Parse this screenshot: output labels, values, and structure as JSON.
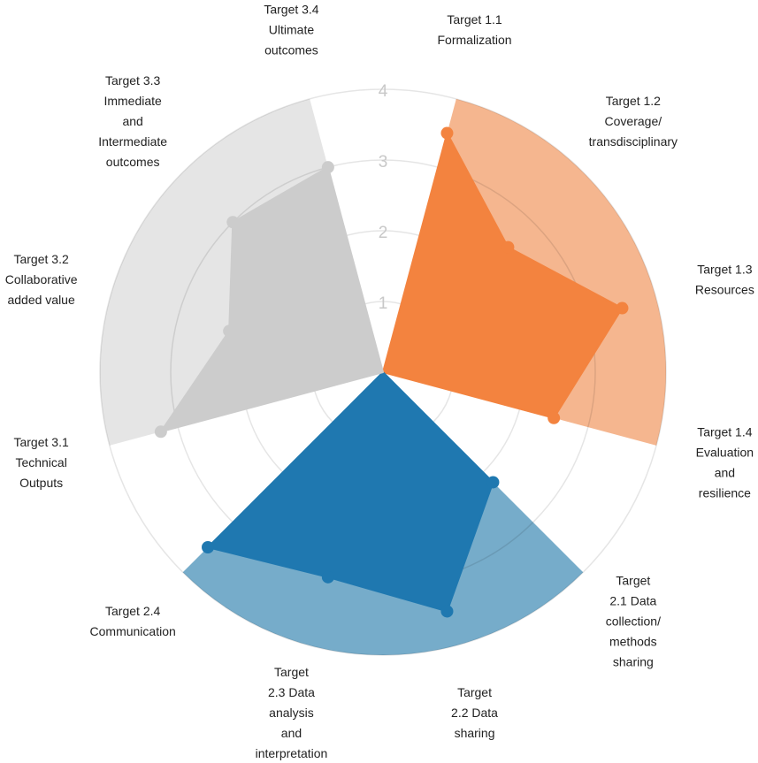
{
  "chart_data": {
    "type": "radar",
    "categories": [
      [
        "Target 1.1",
        "Formalization"
      ],
      [
        "Target 1.2",
        "Coverage/",
        "transdisciplinary"
      ],
      [
        "Target 1.3",
        "Resources"
      ],
      [
        "Target 1.4",
        "Evaluation",
        "and",
        "resilience"
      ],
      [
        "Target",
        "2.1 Data",
        "collection/",
        "methods",
        "sharing"
      ],
      [
        "Target",
        "2.2 Data",
        "sharing"
      ],
      [
        "Target",
        "2.3 Data",
        "analysis",
        "and",
        "interpretation"
      ],
      [
        "Target 2.4",
        "Communication"
      ],
      [
        "Target 3.1",
        "Technical",
        "Outputs"
      ],
      [
        "Target 3.2",
        "Collaborative",
        "added value"
      ],
      [
        "Target 3.3",
        "Immediate",
        "and",
        "Intermediate",
        "outcomes"
      ],
      [
        "Target 3.4",
        "Ultimate",
        "outcomes"
      ]
    ],
    "series": [
      {
        "color": "#f3833f",
        "band_color": "#f5b68f",
        "values": [
          3.5,
          2.5,
          3.5,
          2.5,
          null,
          null,
          null,
          null,
          null,
          null,
          null,
          null
        ]
      },
      {
        "color": "#1f78b0",
        "band_color": "#76acca",
        "values": [
          null,
          null,
          null,
          null,
          2.2,
          3.5,
          3.0,
          3.5,
          null,
          null,
          null,
          null
        ]
      },
      {
        "color": "#cccccc",
        "band_color": "#e5e5e5",
        "values": [
          null,
          null,
          null,
          null,
          null,
          null,
          null,
          null,
          3.25,
          2.25,
          3.0,
          3.0
        ]
      }
    ],
    "rlim": [
      0,
      4
    ],
    "rticks": [
      1,
      2,
      3,
      4
    ],
    "grid": true
  }
}
